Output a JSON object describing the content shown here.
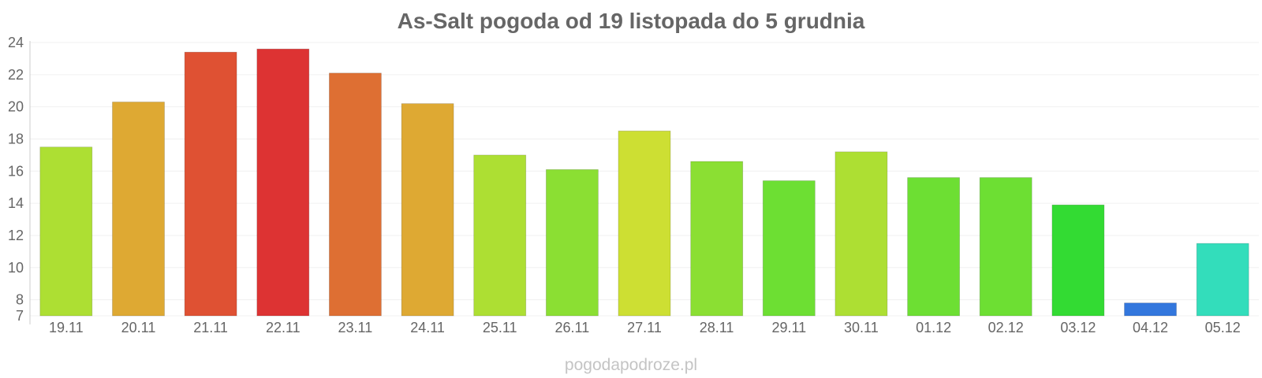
{
  "chart_data": {
    "type": "bar",
    "title": "As-Salt pogoda od 19 listopada do 5 grudnia",
    "xlabel": "",
    "ylabel": "",
    "categories": [
      "19.11",
      "20.11",
      "21.11",
      "22.11",
      "23.11",
      "24.11",
      "25.11",
      "26.11",
      "27.11",
      "28.11",
      "29.11",
      "30.11",
      "01.12",
      "02.12",
      "03.12",
      "04.12",
      "05.12"
    ],
    "values": [
      17.5,
      20.3,
      23.4,
      23.6,
      22.1,
      20.2,
      17.0,
      16.1,
      18.5,
      16.6,
      15.4,
      17.2,
      15.6,
      15.6,
      13.9,
      7.8,
      11.5
    ],
    "colors": [
      "#addf33",
      "#dea933",
      "#df5133",
      "#dd3333",
      "#de6f33",
      "#dea933",
      "#addf33",
      "#8bdf33",
      "#cddf33",
      "#8bdf33",
      "#6ddf33",
      "#addf33",
      "#6ddf33",
      "#6ddf33",
      "#33db33",
      "#3377dd",
      "#33ddbb"
    ],
    "ylim": [
      7,
      24
    ],
    "yticks": [
      7,
      8,
      10,
      12,
      14,
      16,
      18,
      20,
      22,
      24
    ],
    "grid": true,
    "legend": "none"
  },
  "watermark": "pogodapodroze.pl"
}
